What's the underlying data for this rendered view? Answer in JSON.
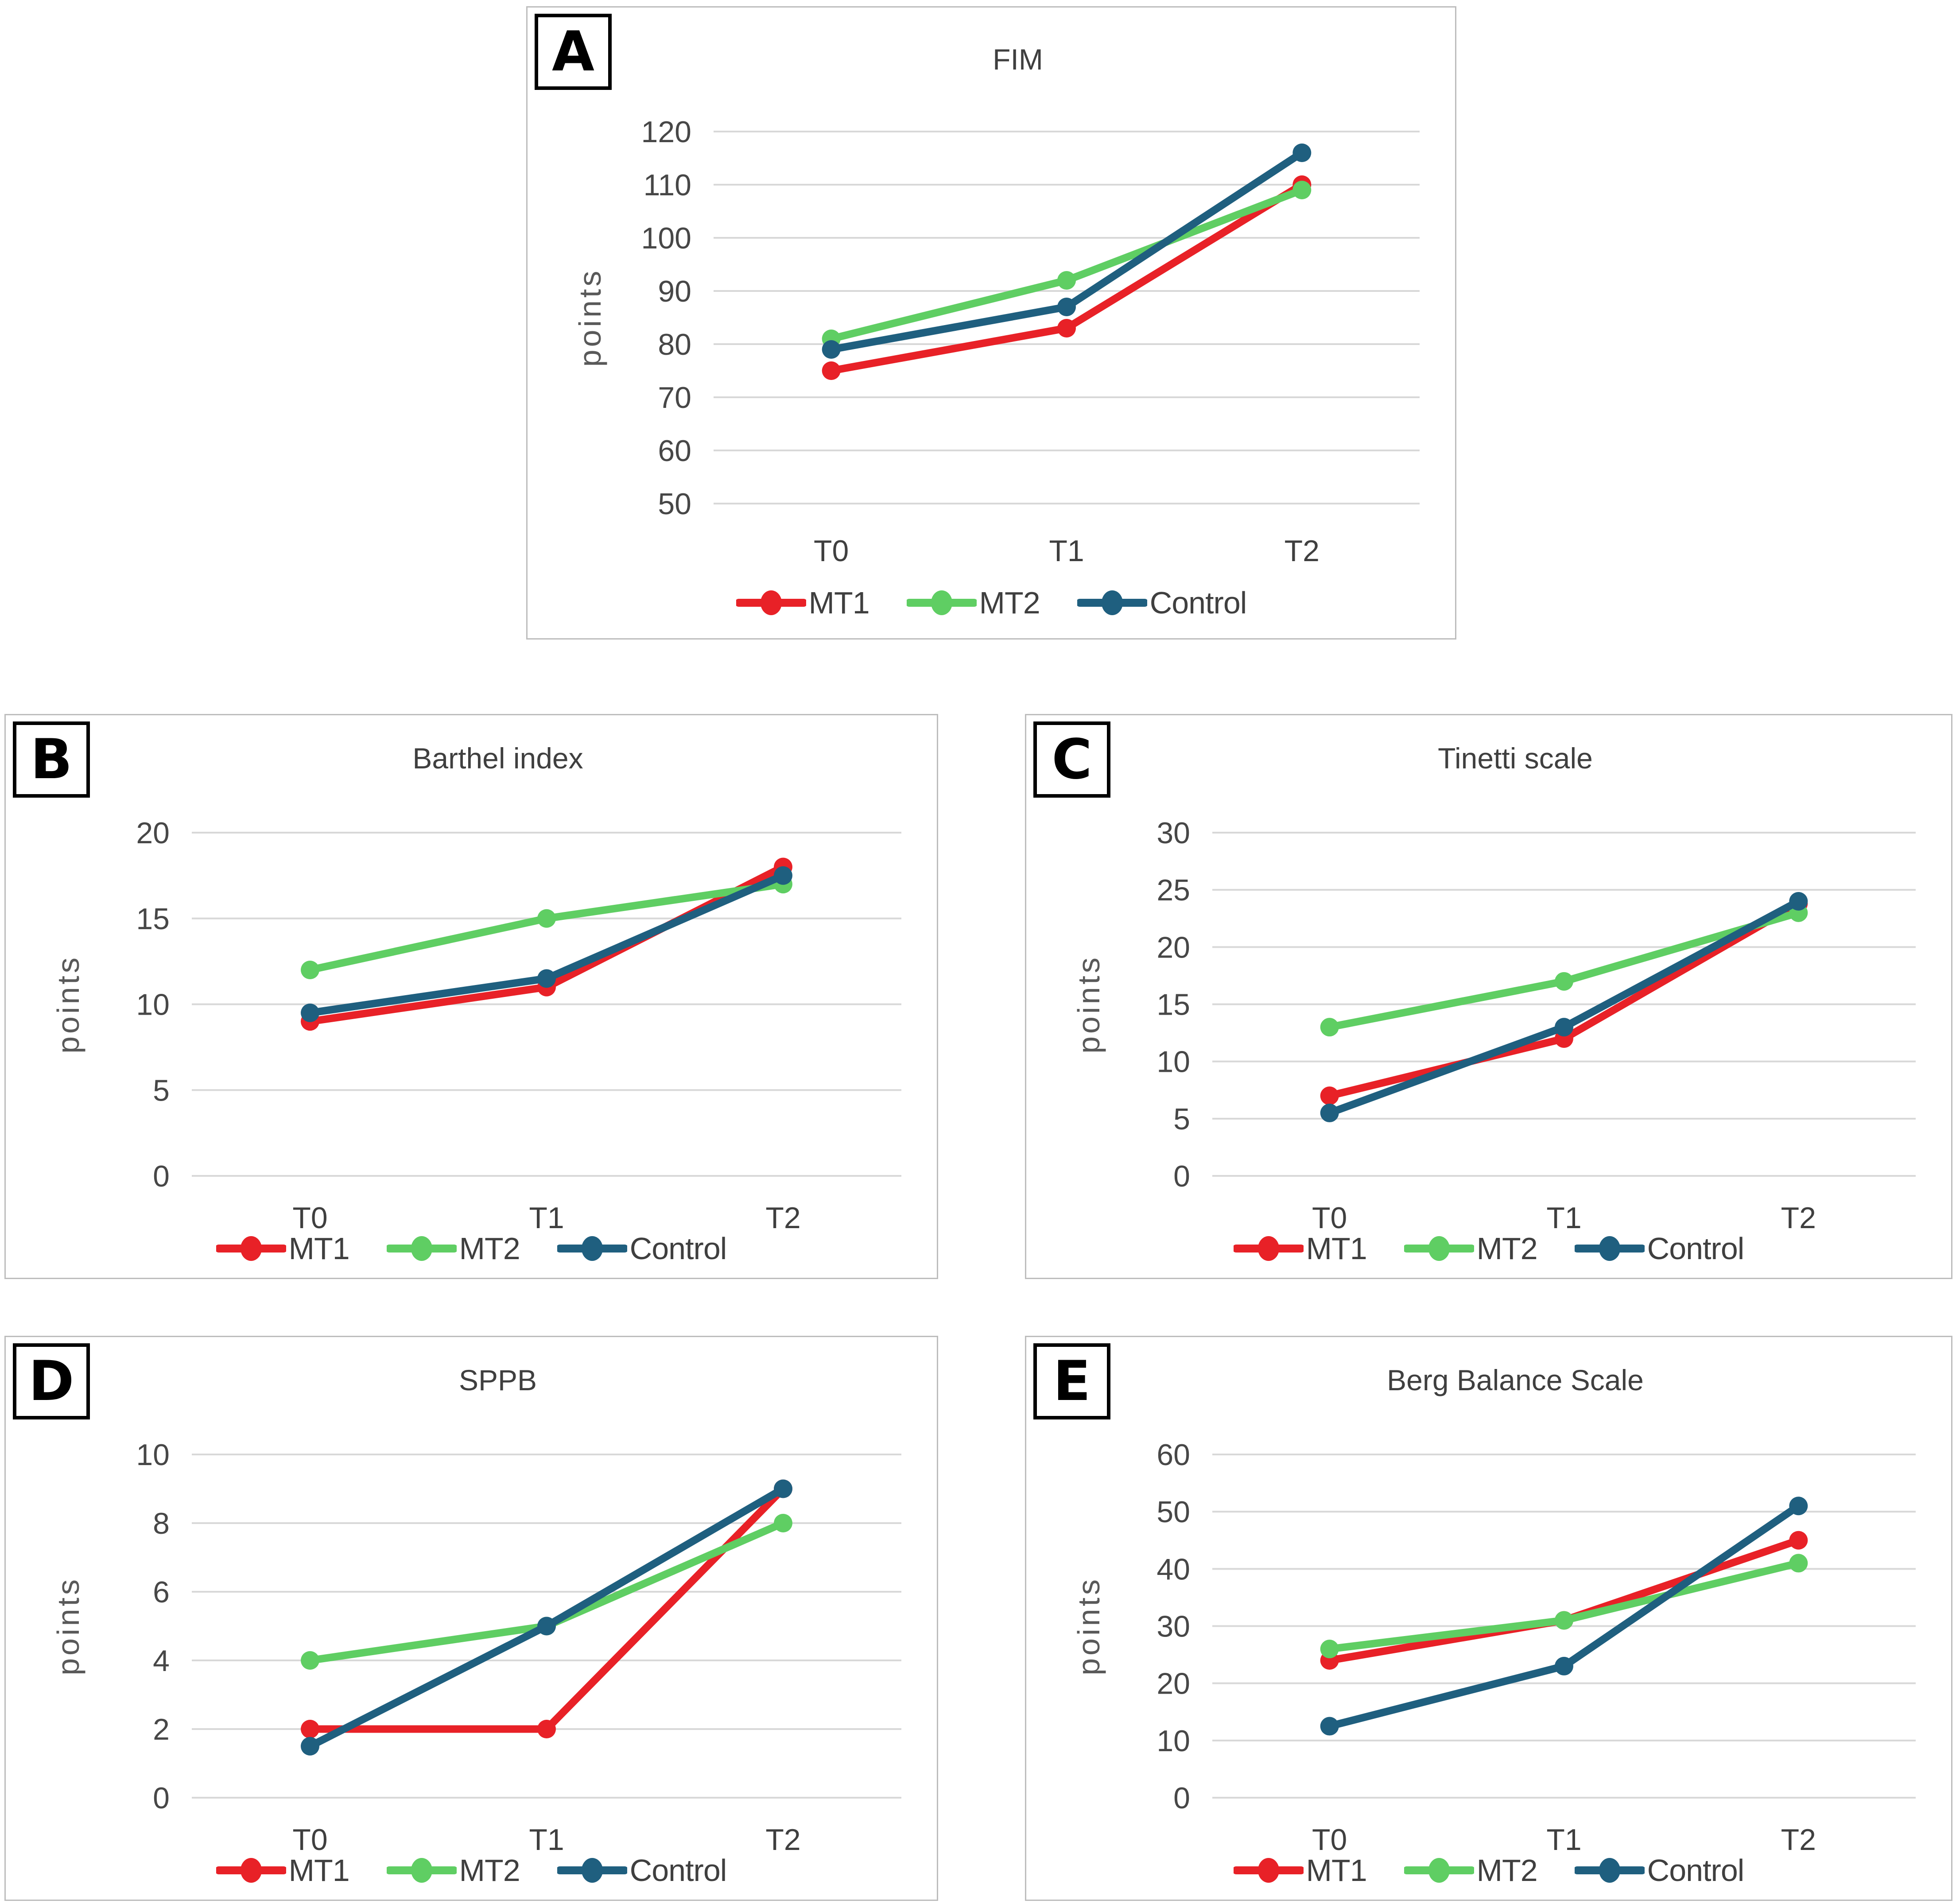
{
  "figure": {
    "background": "#ffffff",
    "panel_border_color": "#bdbdbd",
    "grid_color": "#d8d8d8",
    "tick_text_color": "#474747",
    "title_text_color": "#3f3f3f",
    "series_colors": {
      "MT1": "#e82127",
      "MT2": "#5fce63",
      "Control": "#1f5f7f"
    }
  },
  "chart_data": [
    {
      "type": "line",
      "panel_label": "A",
      "title": "FIM",
      "ylabel": "points",
      "categories": [
        "T0",
        "T1",
        "T2"
      ],
      "ylim": [
        50,
        120
      ],
      "ytick_step": 10,
      "ytick_labels": [
        "50",
        "60",
        "70",
        "80",
        "90",
        "100",
        "110",
        "120"
      ],
      "grid": true,
      "legend_position": "bottom",
      "series": [
        {
          "name": "MT1",
          "color": "#e82127",
          "values": [
            75,
            83,
            110
          ]
        },
        {
          "name": "MT2",
          "color": "#5fce63",
          "values": [
            81,
            92,
            109
          ]
        },
        {
          "name": "Control",
          "color": "#1f5f7f",
          "values": [
            79,
            87,
            116
          ]
        }
      ]
    },
    {
      "type": "line",
      "panel_label": "B",
      "title": "Barthel index",
      "ylabel": "points",
      "categories": [
        "T0",
        "T1",
        "T2"
      ],
      "ylim": [
        0,
        20
      ],
      "ytick_step": 5,
      "ytick_labels": [
        "0",
        "5",
        "10",
        "15",
        "20"
      ],
      "grid": true,
      "legend_position": "bottom",
      "series": [
        {
          "name": "MT1",
          "color": "#e82127",
          "values": [
            9,
            11,
            18
          ]
        },
        {
          "name": "MT2",
          "color": "#5fce63",
          "values": [
            12,
            15,
            17
          ]
        },
        {
          "name": "Control",
          "color": "#1f5f7f",
          "values": [
            9.5,
            11.5,
            17.5
          ]
        }
      ]
    },
    {
      "type": "line",
      "panel_label": "C",
      "title": "Tinetti scale",
      "ylabel": "points",
      "categories": [
        "T0",
        "T1",
        "T2"
      ],
      "ylim": [
        0,
        30
      ],
      "ytick_step": 5,
      "ytick_labels": [
        "0",
        "5",
        "10",
        "15",
        "20",
        "25",
        "30"
      ],
      "grid": true,
      "legend_position": "bottom",
      "series": [
        {
          "name": "MT1",
          "color": "#e82127",
          "values": [
            7,
            12,
            23.8
          ]
        },
        {
          "name": "MT2",
          "color": "#5fce63",
          "values": [
            13,
            17,
            23
          ]
        },
        {
          "name": "Control",
          "color": "#1f5f7f",
          "values": [
            5.5,
            13,
            24
          ]
        }
      ]
    },
    {
      "type": "line",
      "panel_label": "D",
      "title": "SPPB",
      "ylabel": "points",
      "categories": [
        "T0",
        "T1",
        "T2"
      ],
      "ylim": [
        0,
        10
      ],
      "ytick_step": 2,
      "ytick_labels": [
        "0",
        "2",
        "4",
        "6",
        "8",
        "10"
      ],
      "grid": true,
      "legend_position": "bottom",
      "series": [
        {
          "name": "MT1",
          "color": "#e82127",
          "values": [
            2,
            2,
            9
          ]
        },
        {
          "name": "MT2",
          "color": "#5fce63",
          "values": [
            4,
            5,
            8
          ]
        },
        {
          "name": "Control",
          "color": "#1f5f7f",
          "values": [
            1.5,
            5,
            9
          ]
        }
      ]
    },
    {
      "type": "line",
      "panel_label": "E",
      "title": "Berg Balance Scale",
      "ylabel": "points",
      "categories": [
        "T0",
        "T1",
        "T2"
      ],
      "ylim": [
        0,
        60
      ],
      "ytick_step": 10,
      "ytick_labels": [
        "0",
        "10",
        "20",
        "30",
        "40",
        "50",
        "60"
      ],
      "grid": true,
      "legend_position": "bottom",
      "series": [
        {
          "name": "MT1",
          "color": "#e82127",
          "values": [
            24,
            31,
            45
          ]
        },
        {
          "name": "MT2",
          "color": "#5fce63",
          "values": [
            26,
            31,
            41
          ]
        },
        {
          "name": "Control",
          "color": "#1f5f7f",
          "values": [
            12.5,
            23,
            51
          ]
        }
      ]
    }
  ]
}
